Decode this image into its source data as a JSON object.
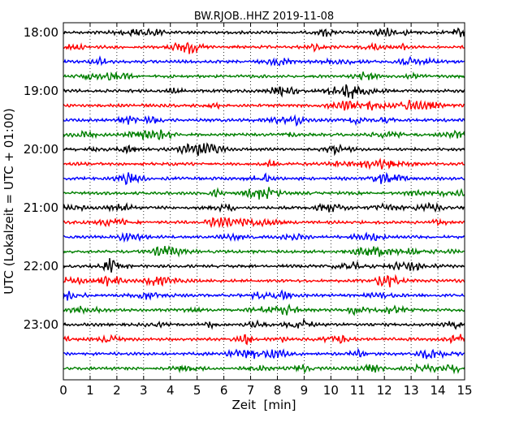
{
  "chart_data": {
    "type": "line",
    "title": "BW.RJOB..HHZ 2019-11-08",
    "xlabel": "Zeit  [min]",
    "ylabel": "UTC (Lokalzeit = UTC + 01:00)",
    "xlim": [
      0,
      15
    ],
    "x_ticks": [
      "0",
      "1",
      "2",
      "3",
      "4",
      "5",
      "6",
      "7",
      "8",
      "9",
      "10",
      "11",
      "12",
      "13",
      "14",
      "15"
    ],
    "y_ticks": [
      "18:00",
      "19:00",
      "20:00",
      "21:00",
      "22:00",
      "23:00"
    ],
    "grid": "vertical-dotted",
    "trace_colors": [
      "#000000",
      "#ff0000",
      "#0000ff",
      "#008000"
    ],
    "trace_count": 24
  }
}
